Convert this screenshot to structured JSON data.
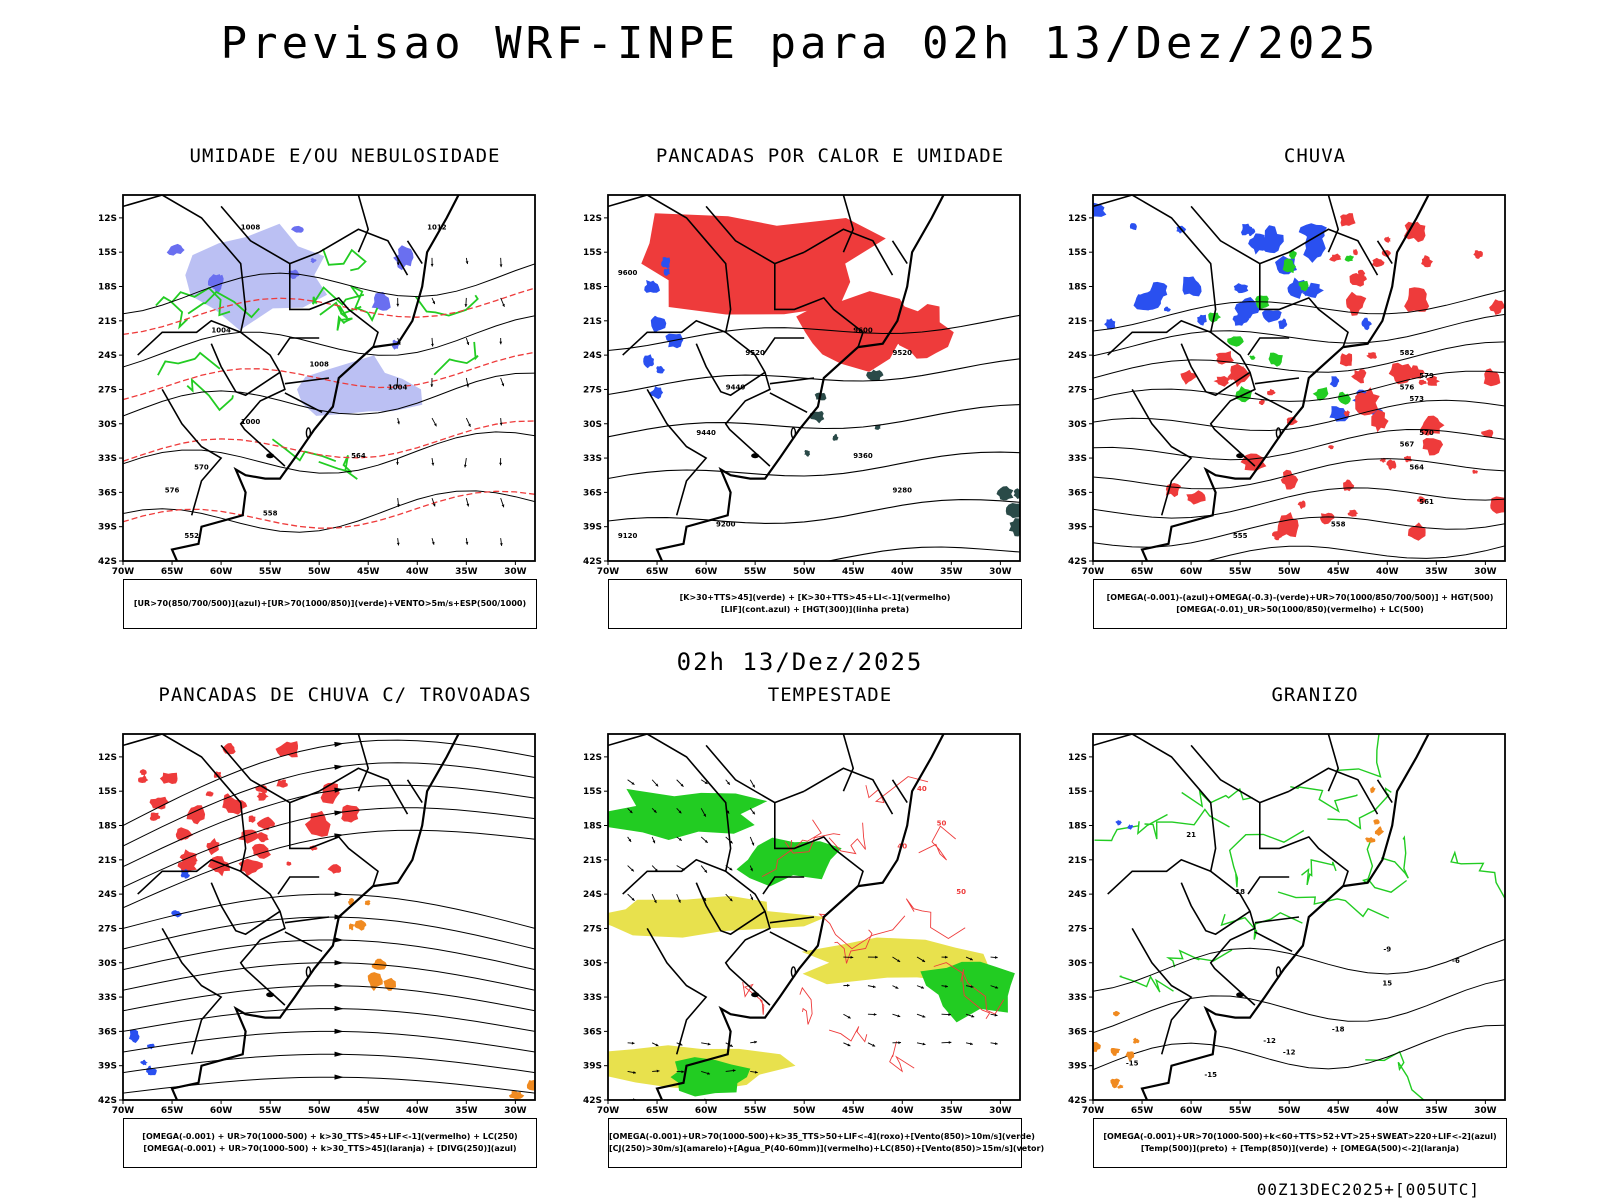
{
  "main_title": "Previsao WRF-INPE  para 02h 13/Dez/2025",
  "mid_date": "02h 13/Dez/2025",
  "footer_stamp": "00Z13DEC2025+[005UTC]",
  "axes": {
    "lat_ticks": [
      "12S",
      "15S",
      "18S",
      "21S",
      "24S",
      "27S",
      "30S",
      "33S",
      "36S",
      "39S",
      "42S"
    ],
    "lon_ticks": [
      "70W",
      "65W",
      "60W",
      "55W",
      "50W",
      "45W",
      "40W",
      "35W",
      "30W"
    ],
    "lat_range": [
      -42,
      -10
    ],
    "lon_range": [
      -70,
      -28
    ]
  },
  "colors": {
    "red": "#ee3b3b",
    "blue": "#2a50f0",
    "green": "#22cc22",
    "lavender": "#aab0f0",
    "dark_teal": "#2a4a48",
    "yellow": "#e6de3a",
    "orange": "#f08a20",
    "black": "#000000"
  },
  "panels": [
    {
      "id": "umidade",
      "title": "UMIDADE E/OU NEBULOSIDADE",
      "legend": [
        "[UR>70(850/700/500)](azul)+[UR>70(1000/850)](verde)+VENTO>5m/s+ESP(500/1000)"
      ],
      "contour_labels": [
        "1008",
        "1012",
        "1004",
        "1008",
        "1004",
        "1000",
        "570",
        "576",
        "564",
        "558",
        "552"
      ]
    },
    {
      "id": "pancadas-calor",
      "title": "PANCADAS POR CALOR E UMIDADE",
      "legend": [
        "[K>30+TTS>45](verde) + [K>30+TTS>45+LI<-1](vermelho)",
        "[LIF](cont.azul) + [HGT(300)](linha preta)"
      ],
      "contour_labels": [
        "9600",
        "9520",
        "9440",
        "9360",
        "9280",
        "9200",
        "9120",
        "9600",
        "9520",
        "9440"
      ]
    },
    {
      "id": "chuva",
      "title": "CHUVA",
      "legend": [
        "[OMEGA(-0.001)-(azul)+OMEGA(-0.3)-(verde)+UR>70(1000/850/700/500)] + HGT(500)",
        "[OMEGA(-0.01)_UR>50(1000/850)(vermelho) + LC(500)"
      ],
      "contour_labels": [
        "582",
        "579",
        "576",
        "573",
        "570",
        "567",
        "564",
        "561",
        "558",
        "555"
      ]
    },
    {
      "id": "pancadas-trovoadas",
      "title": "PANCADAS DE CHUVA C/ TROVOADAS",
      "legend": [
        "[OMEGA(-0.001) + UR>70(1000-500) + k>30_TTS>45+LIF<-1](vermelho) + LC(250)",
        "[OMEGA(-0.001) + UR>70(1000-500) + k>30_TTS>45](laranja) + [DIVG(250)](azul)"
      ],
      "contour_labels": []
    },
    {
      "id": "tempestade",
      "title": "TEMPESTADE",
      "legend": [
        "[OMEGA(-0.001)+UR>70(1000-500)+k>35_TTS>50+LIF<-4](roxo)+[Vento(850)>10m/s](verde)",
        "[CJ(250)>30m/s](amarelo)+[Agua_P(40-60mm)](vermelho)+LC(850)+[Vento(850)>15m/s](vetor)"
      ],
      "contour_labels": [
        "40",
        "50",
        "40",
        "50"
      ]
    },
    {
      "id": "granizo",
      "title": "GRANIZO",
      "legend": [
        "[OMEGA(-0.001)+UR>70(1000-500)+k<60+TTS>52+VT>25+SWEAT>220+LIF<-2](azul)",
        "[Temp(500)](preto) + [Temp(850)](verde) + [OMEGA(500)<-2](laranja)"
      ],
      "contour_labels": [
        "-9",
        "-12",
        "-15",
        "-18",
        "15",
        "18",
        "21",
        "-6",
        "-12",
        "-15"
      ]
    }
  ]
}
